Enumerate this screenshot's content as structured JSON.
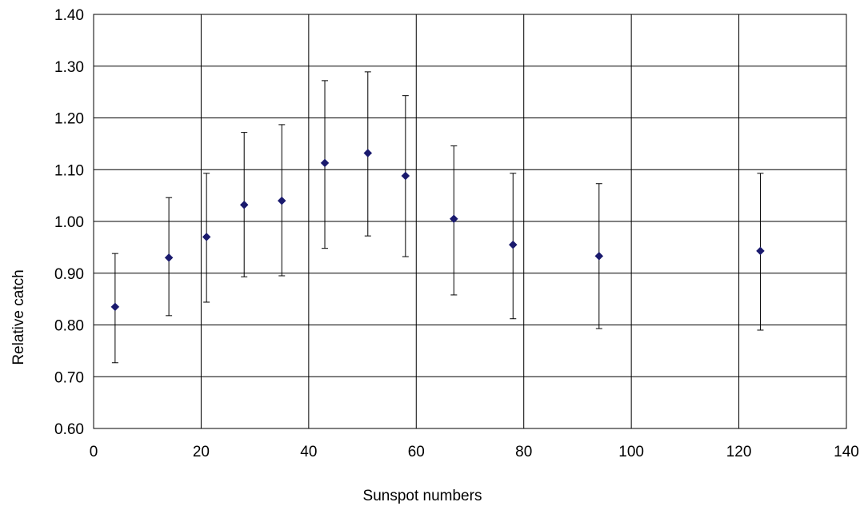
{
  "chart_data": {
    "type": "scatter",
    "title": "",
    "xlabel": "Sunspot numbers",
    "ylabel": "Relative catch",
    "xlim": [
      0,
      140
    ],
    "ylim": [
      0.6,
      1.4
    ],
    "x_ticks": [
      "0",
      "20",
      "40",
      "60",
      "80",
      "100",
      "120",
      "140"
    ],
    "y_ticks": [
      "0.60",
      "0.70",
      "0.80",
      "0.90",
      "1.00",
      "1.10",
      "1.20",
      "1.30",
      "1.40"
    ],
    "grid": true,
    "legend": "none",
    "marker": "diamond",
    "marker_color": "#1a1a6e",
    "points": [
      {
        "x": 4,
        "y": 0.835,
        "y_low": 0.727,
        "y_high": 0.938
      },
      {
        "x": 14,
        "y": 0.93,
        "y_low": 0.818,
        "y_high": 1.046
      },
      {
        "x": 21,
        "y": 0.97,
        "y_low": 0.844,
        "y_high": 1.093
      },
      {
        "x": 28,
        "y": 1.032,
        "y_low": 0.893,
        "y_high": 1.172
      },
      {
        "x": 35,
        "y": 1.04,
        "y_low": 0.895,
        "y_high": 1.187
      },
      {
        "x": 43,
        "y": 1.113,
        "y_low": 0.948,
        "y_high": 1.272
      },
      {
        "x": 51,
        "y": 1.132,
        "y_low": 0.972,
        "y_high": 1.289
      },
      {
        "x": 58,
        "y": 1.088,
        "y_low": 0.932,
        "y_high": 1.243
      },
      {
        "x": 67,
        "y": 1.005,
        "y_low": 0.858,
        "y_high": 1.146
      },
      {
        "x": 78,
        "y": 0.955,
        "y_low": 0.812,
        "y_high": 1.093
      },
      {
        "x": 94,
        "y": 0.933,
        "y_low": 0.793,
        "y_high": 1.073
      },
      {
        "x": 124,
        "y": 0.943,
        "y_low": 0.79,
        "y_high": 1.093
      }
    ]
  }
}
